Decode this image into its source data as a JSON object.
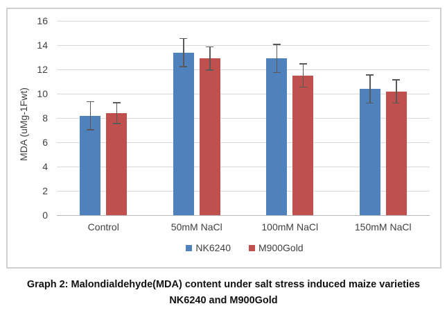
{
  "chart_data": {
    "type": "bar",
    "categories": [
      "Control",
      "50mM NaCl",
      "100mM NaCl",
      "150mM NaCl"
    ],
    "series": [
      {
        "name": "NK6240",
        "color": "#4F81BD",
        "values": [
          8.2,
          13.4,
          12.9,
          10.4
        ],
        "errors": [
          1.2,
          1.2,
          1.2,
          1.2
        ]
      },
      {
        "name": "M900Gold",
        "color": "#C0504D",
        "values": [
          8.4,
          12.9,
          11.5,
          10.2
        ],
        "errors": [
          0.9,
          1.0,
          1.0,
          1.0
        ]
      }
    ],
    "ylabel": "MDA (uMg-1Fwt)",
    "ylim": [
      0,
      16
    ],
    "yticks": [
      0,
      2,
      4,
      6,
      8,
      10,
      12,
      14,
      16
    ],
    "grid": true,
    "legend_position": "bottom",
    "error_bars": true
  },
  "caption": {
    "line1": "Graph 2: Malondialdehyde(MDA) content under salt stress induced maize varieties",
    "line2": "NK6240 and M900Gold"
  },
  "colors": {
    "bar_blue": "#4F81BD",
    "bar_red": "#C0504D",
    "gridline": "#D9D9D9",
    "axis_line": "#B7B7B7",
    "error_bar": "#595959",
    "frame_border": "#CFCFCF",
    "text": "#3F3F3F"
  }
}
